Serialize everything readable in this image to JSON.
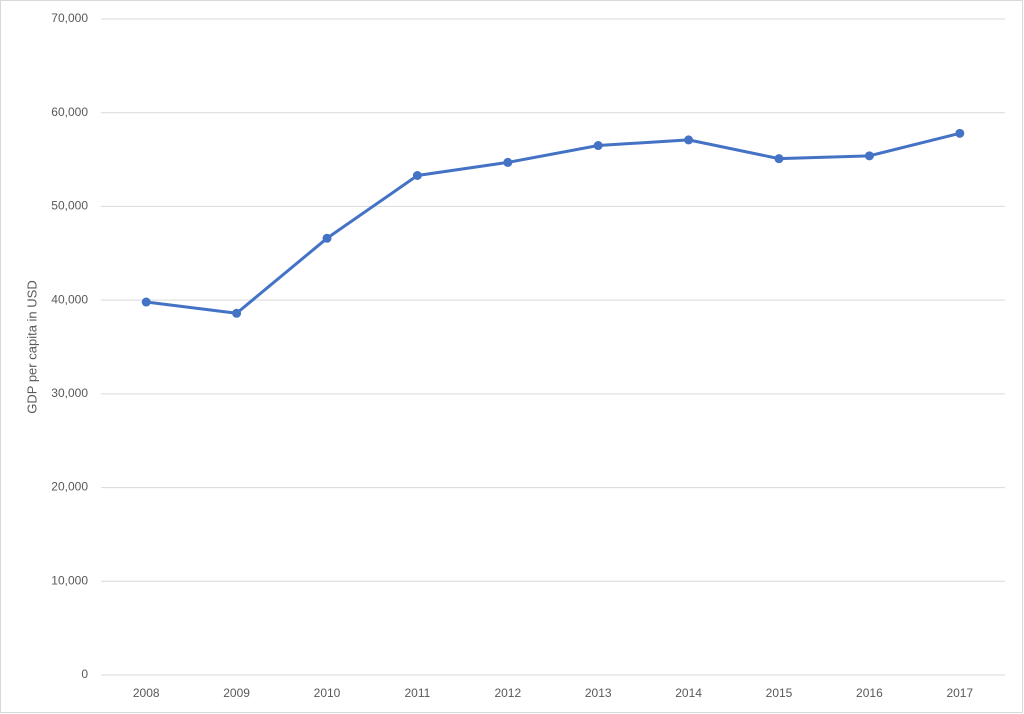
{
  "chart_data": {
    "type": "line",
    "y_label": "GDP per capita in USD",
    "categories": [
      "2008",
      "2009",
      "2010",
      "2011",
      "2012",
      "2013",
      "2014",
      "2015",
      "2016",
      "2017"
    ],
    "series": [
      {
        "color": "#4472c4",
        "values": [
          39800,
          38600,
          46600,
          53300,
          54700,
          56500,
          57100,
          55100,
          55400,
          57800
        ]
      }
    ],
    "ylim": [
      0,
      70000
    ],
    "yticks": [
      0,
      {
        "value": 10000,
        "label": "10,000"
      },
      {
        "value": 20000,
        "label": "20,000"
      },
      {
        "value": 30000,
        "label": "30,000"
      },
      {
        "value": 40000,
        "label": "40,000"
      },
      {
        "value": 50000,
        "label": "50,000"
      },
      {
        "value": 60000,
        "label": "60,000"
      },
      {
        "value": 70000,
        "label": "70,000"
      }
    ],
    "grid": true
  }
}
